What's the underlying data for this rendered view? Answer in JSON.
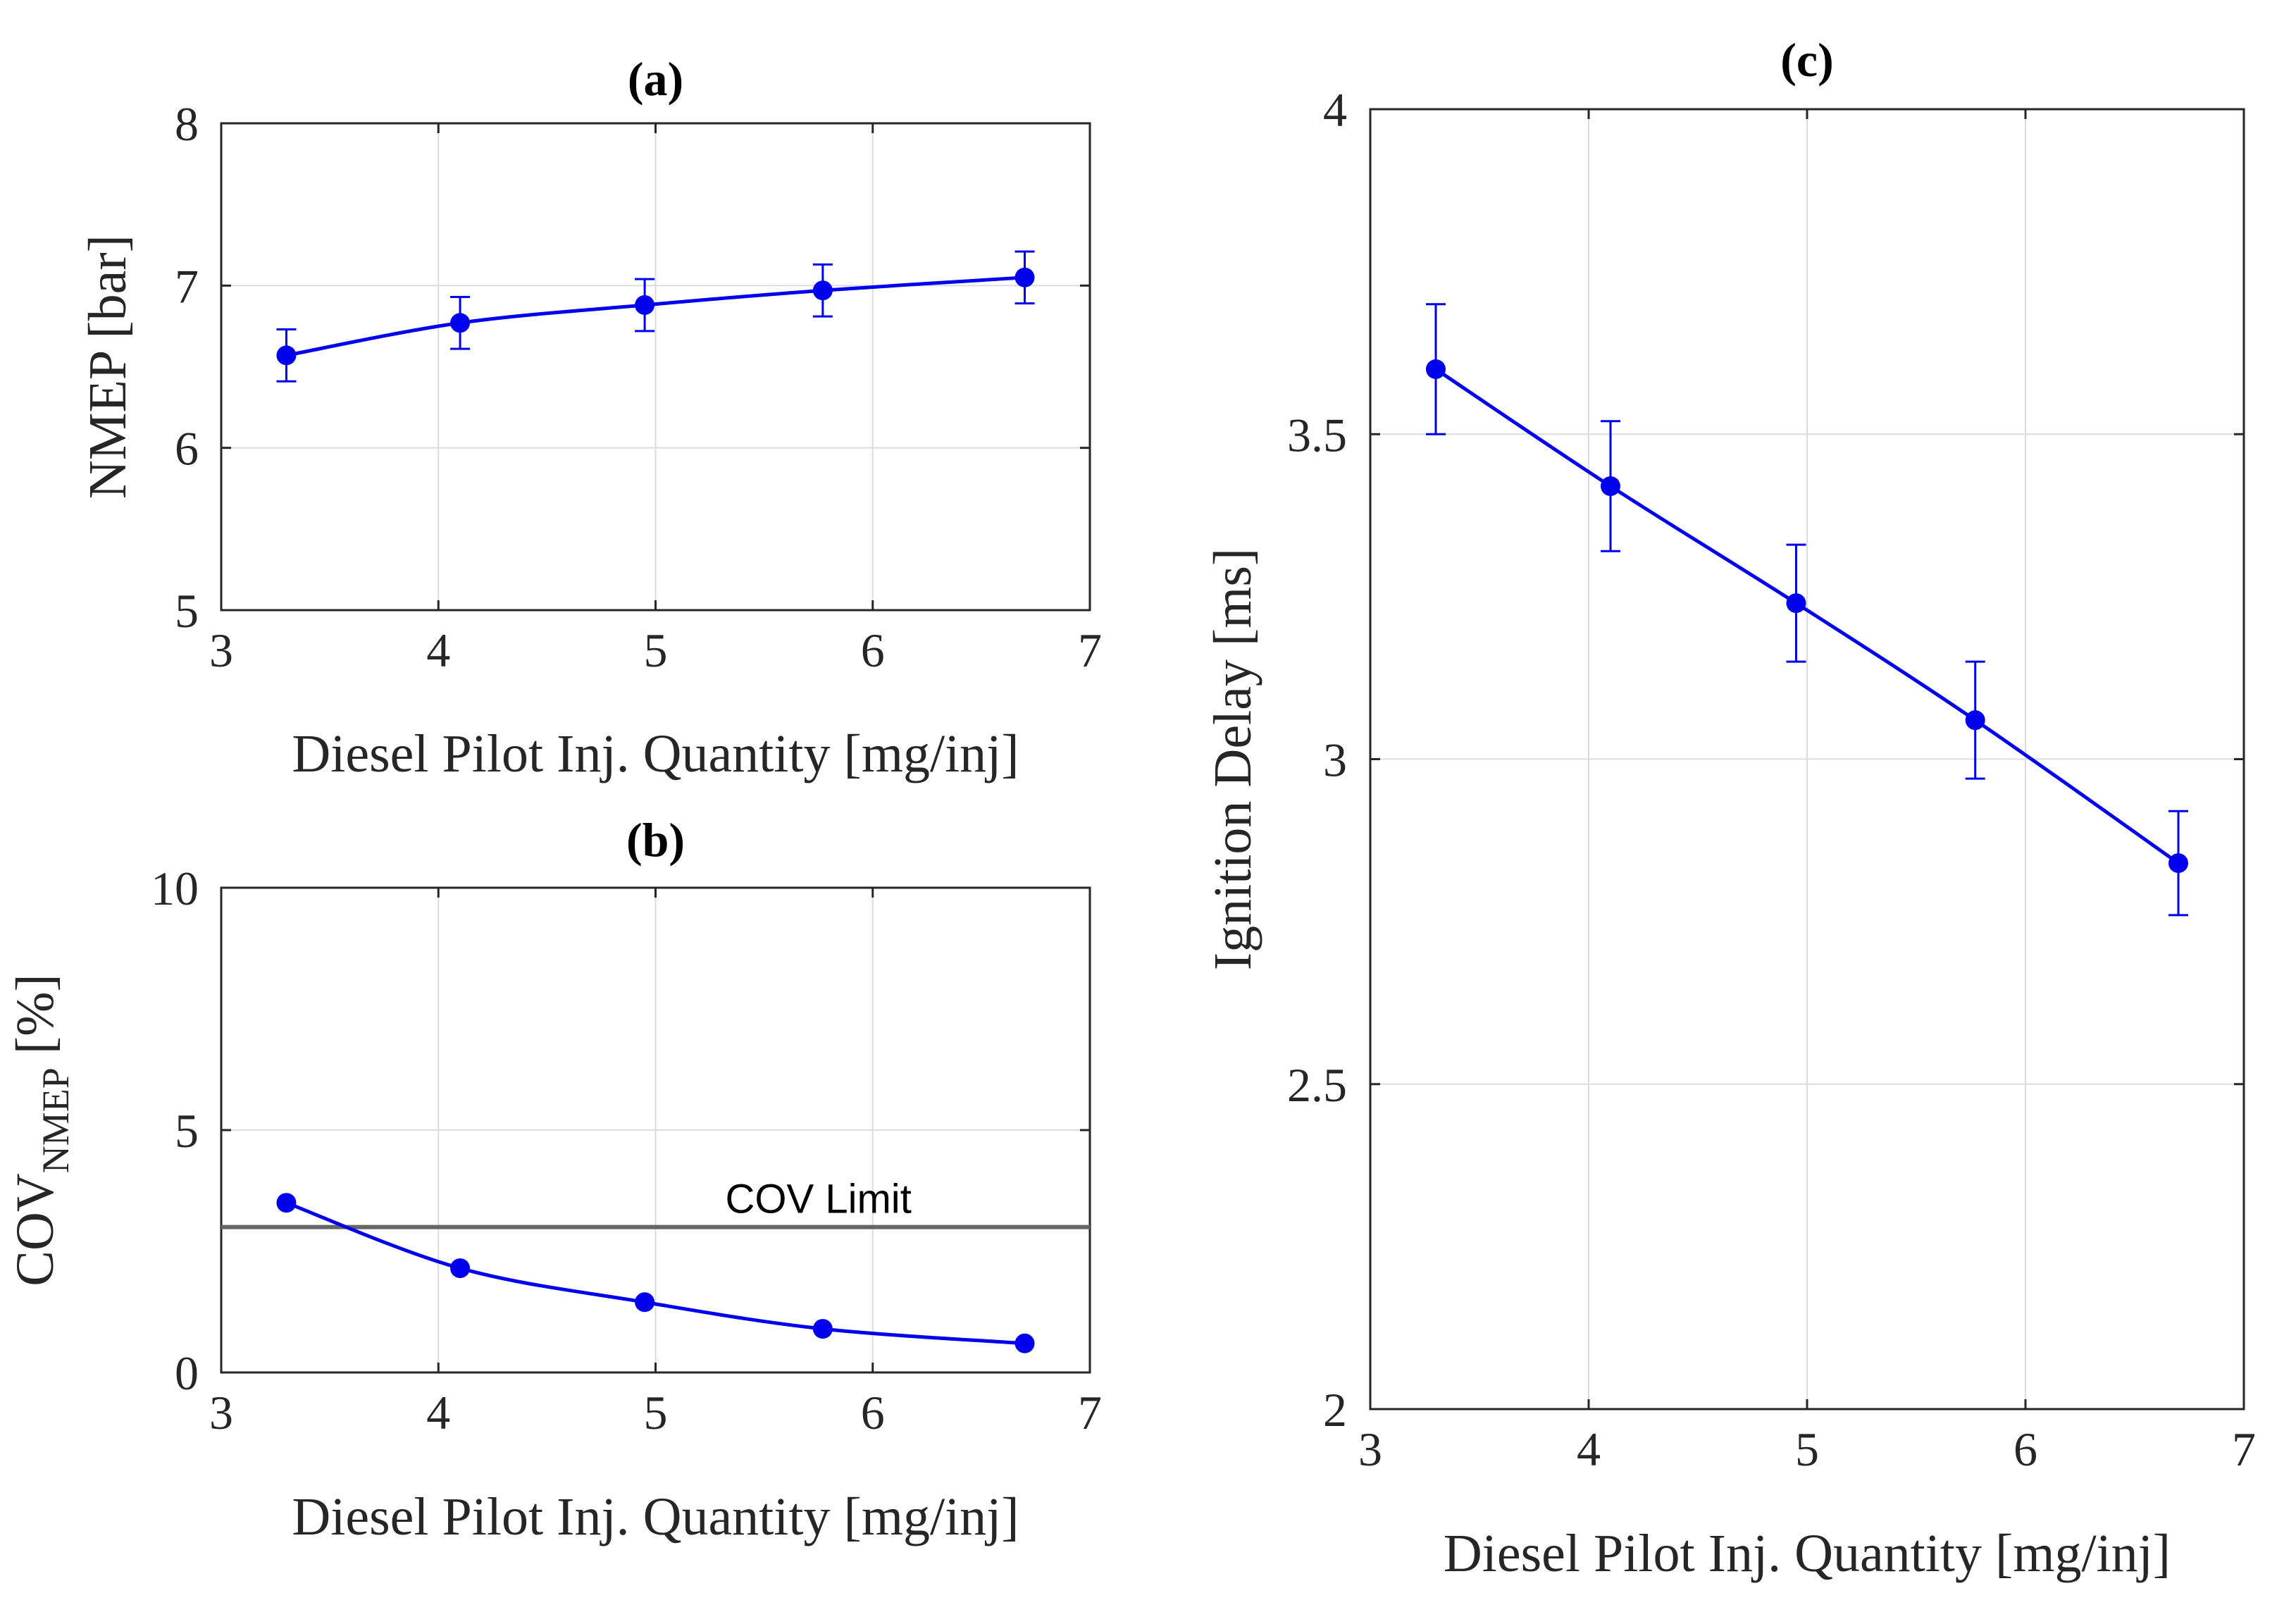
{
  "chart_data": [
    {
      "id": "a",
      "type": "line",
      "title": "(a)",
      "xlabel": "Diesel Pilot Inj. Quantity [mg/inj]",
      "ylabel": "NMEP [bar]",
      "xlim": [
        3,
        7
      ],
      "ylim": [
        5,
        8
      ],
      "xticks": [
        3,
        4,
        5,
        6,
        7
      ],
      "yticks": [
        5,
        6,
        7,
        8
      ],
      "x": [
        3.3,
        4.1,
        4.95,
        5.77,
        6.7
      ],
      "y": [
        6.57,
        6.77,
        6.88,
        6.97,
        7.05
      ],
      "yerr": [
        0.16,
        0.16,
        0.16,
        0.16,
        0.16
      ],
      "grid": true,
      "series_color": "#0000ee"
    },
    {
      "id": "b",
      "type": "line",
      "title": "(b)",
      "xlabel": "Diesel Pilot Inj. Quantity [mg/inj]",
      "ylabel_main": "COV",
      "ylabel_sub": "NMEP",
      "ylabel_tail": " [%]",
      "xlim": [
        3,
        7
      ],
      "ylim": [
        0,
        10
      ],
      "xticks": [
        3,
        4,
        5,
        6,
        7
      ],
      "yticks": [
        0,
        5,
        10
      ],
      "x": [
        3.3,
        4.1,
        4.95,
        5.77,
        6.7
      ],
      "y": [
        3.5,
        2.15,
        1.45,
        0.9,
        0.6
      ],
      "grid": true,
      "series_color": "#0000ee",
      "limit_line": {
        "y": 3,
        "label": "COV Limit",
        "color": "#666666"
      }
    },
    {
      "id": "c",
      "type": "line",
      "title": "(c)",
      "xlabel": "Diesel Pilot Inj. Quantity [mg/inj]",
      "ylabel": "Ignition Delay [ms]",
      "xlim": [
        3,
        7
      ],
      "ylim": [
        2,
        4
      ],
      "xticks": [
        3,
        4,
        5,
        6,
        7
      ],
      "yticks": [
        2,
        2.5,
        3,
        3.5,
        4
      ],
      "x": [
        3.3,
        4.1,
        4.95,
        5.77,
        6.7
      ],
      "y": [
        3.6,
        3.42,
        3.24,
        3.06,
        2.84
      ],
      "yerr": [
        0.1,
        0.1,
        0.09,
        0.09,
        0.08
      ],
      "grid": true,
      "series_color": "#0000ee"
    }
  ]
}
